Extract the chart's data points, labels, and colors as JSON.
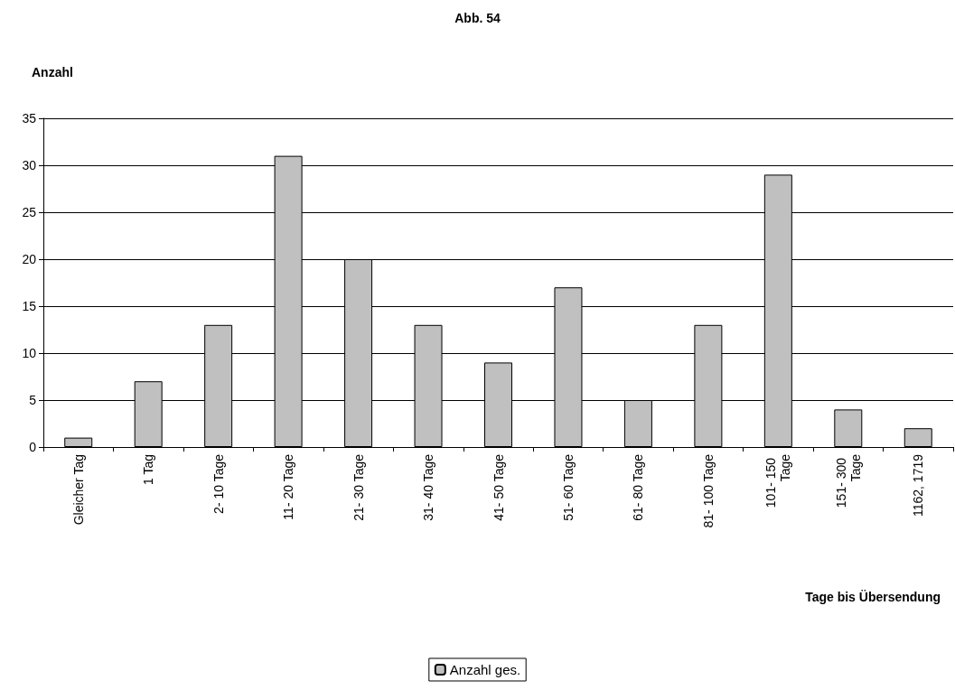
{
  "chart_data": {
    "type": "bar",
    "title": "Abb. 54",
    "ylabel": "Anzahl",
    "xlabel": "Tage bis Übersendung",
    "categories": [
      "Gleicher Tag",
      "1 Tag",
      "2- 10 Tage",
      "11- 20 Tage",
      "21- 30 Tage",
      "31- 40 Tage",
      "41- 50 Tage",
      "51- 60 Tage",
      "61- 80 Tage",
      "81- 100 Tage",
      "101- 150 Tage",
      "151- 300 Tage",
      "1162, 1719"
    ],
    "series": [
      {
        "name": "Anzahl ges.",
        "color": "#c0c0c0",
        "values": [
          1,
          7,
          13,
          31,
          20,
          13,
          9,
          17,
          5,
          13,
          29,
          4,
          2
        ]
      }
    ],
    "ylim": [
      0,
      35
    ],
    "yticks": [
      0,
      5,
      10,
      15,
      20,
      25,
      30,
      35
    ],
    "grid": "y",
    "legend": "bottom"
  }
}
